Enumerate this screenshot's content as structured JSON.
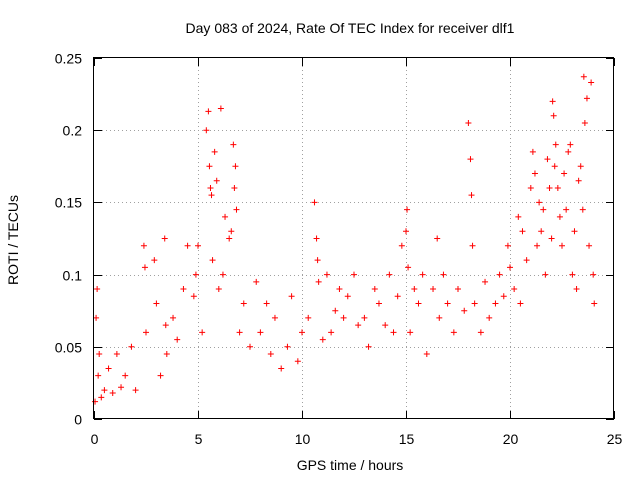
{
  "chart_data": {
    "type": "scatter",
    "title": "Day 083 of 2024, Rate Of TEC Index for receiver dlf1",
    "xlabel": "GPS time / hours",
    "ylabel": "ROTI / TECUs",
    "xlim": [
      0,
      25
    ],
    "ylim": [
      0,
      0.25
    ],
    "xticks": [
      0,
      5,
      10,
      15,
      20,
      25
    ],
    "xtick_labels": [
      "0",
      "5",
      "10",
      "15",
      "20",
      "25"
    ],
    "yticks": [
      0,
      0.05,
      0.1,
      0.15,
      0.2,
      0.25
    ],
    "ytick_labels": [
      "0",
      "0.05",
      "0.1",
      "0.15",
      "0.2",
      "0.25"
    ],
    "grid": true,
    "marker": "plus",
    "color": "#ff0000",
    "series": [
      {
        "name": "ROTI",
        "x": [
          0.05,
          0.1,
          0.15,
          0.2,
          0.25,
          0.35,
          0.5,
          0.7,
          0.9,
          1.1,
          1.3,
          1.5,
          1.8,
          2.0,
          2.4,
          2.45,
          2.5,
          2.9,
          3.0,
          3.2,
          3.4,
          3.45,
          3.5,
          3.8,
          4.0,
          4.3,
          4.5,
          4.8,
          4.9,
          5.0,
          5.2,
          5.4,
          5.5,
          5.55,
          5.6,
          5.65,
          5.7,
          5.8,
          5.9,
          6.0,
          6.1,
          6.2,
          6.3,
          6.5,
          6.6,
          6.7,
          6.75,
          6.8,
          6.85,
          7.0,
          7.2,
          7.5,
          7.8,
          8.0,
          8.3,
          8.5,
          8.7,
          9.0,
          9.3,
          9.5,
          9.8,
          10.0,
          10.3,
          10.6,
          10.7,
          10.75,
          10.8,
          11.0,
          11.2,
          11.4,
          11.6,
          11.8,
          12.0,
          12.2,
          12.5,
          12.7,
          13.0,
          13.2,
          13.5,
          13.7,
          14.0,
          14.2,
          14.4,
          14.6,
          14.8,
          15.0,
          15.05,
          15.1,
          15.2,
          15.4,
          15.6,
          15.8,
          16.0,
          16.3,
          16.5,
          16.6,
          16.8,
          17.0,
          17.3,
          17.5,
          17.8,
          18.0,
          18.1,
          18.15,
          18.2,
          18.3,
          18.6,
          18.8,
          19.0,
          19.3,
          19.5,
          19.7,
          19.9,
          20.0,
          20.2,
          20.4,
          20.5,
          20.6,
          20.8,
          21.0,
          21.1,
          21.2,
          21.3,
          21.4,
          21.5,
          21.6,
          21.7,
          21.8,
          21.9,
          22.0,
          22.05,
          22.1,
          22.15,
          22.2,
          22.3,
          22.4,
          22.5,
          22.6,
          22.7,
          22.8,
          22.9,
          23.0,
          23.1,
          23.2,
          23.3,
          23.4,
          23.5,
          23.55,
          23.6,
          23.7,
          23.8,
          23.9,
          24.0,
          24.05
        ],
        "y": [
          0.012,
          0.07,
          0.09,
          0.03,
          0.045,
          0.015,
          0.02,
          0.035,
          0.018,
          0.045,
          0.022,
          0.03,
          0.05,
          0.02,
          0.12,
          0.105,
          0.06,
          0.11,
          0.08,
          0.03,
          0.125,
          0.065,
          0.045,
          0.07,
          0.055,
          0.09,
          0.12,
          0.085,
          0.1,
          0.12,
          0.06,
          0.2,
          0.213,
          0.175,
          0.16,
          0.155,
          0.11,
          0.185,
          0.165,
          0.09,
          0.215,
          0.1,
          0.14,
          0.125,
          0.13,
          0.19,
          0.16,
          0.175,
          0.145,
          0.06,
          0.08,
          0.05,
          0.095,
          0.06,
          0.08,
          0.045,
          0.07,
          0.035,
          0.05,
          0.085,
          0.04,
          0.06,
          0.07,
          0.15,
          0.125,
          0.11,
          0.095,
          0.055,
          0.1,
          0.06,
          0.075,
          0.09,
          0.07,
          0.085,
          0.1,
          0.065,
          0.07,
          0.05,
          0.09,
          0.08,
          0.065,
          0.1,
          0.06,
          0.085,
          0.12,
          0.13,
          0.145,
          0.105,
          0.06,
          0.09,
          0.08,
          0.1,
          0.045,
          0.09,
          0.125,
          0.07,
          0.1,
          0.08,
          0.06,
          0.09,
          0.075,
          0.205,
          0.18,
          0.155,
          0.12,
          0.08,
          0.06,
          0.095,
          0.07,
          0.08,
          0.1,
          0.085,
          0.12,
          0.105,
          0.09,
          0.14,
          0.08,
          0.13,
          0.11,
          0.16,
          0.185,
          0.17,
          0.12,
          0.15,
          0.13,
          0.145,
          0.1,
          0.18,
          0.16,
          0.125,
          0.22,
          0.21,
          0.175,
          0.19,
          0.16,
          0.14,
          0.12,
          0.17,
          0.145,
          0.185,
          0.19,
          0.1,
          0.13,
          0.09,
          0.165,
          0.175,
          0.145,
          0.237,
          0.205,
          0.222,
          0.12,
          0.233,
          0.1,
          0.08
        ]
      }
    ]
  }
}
